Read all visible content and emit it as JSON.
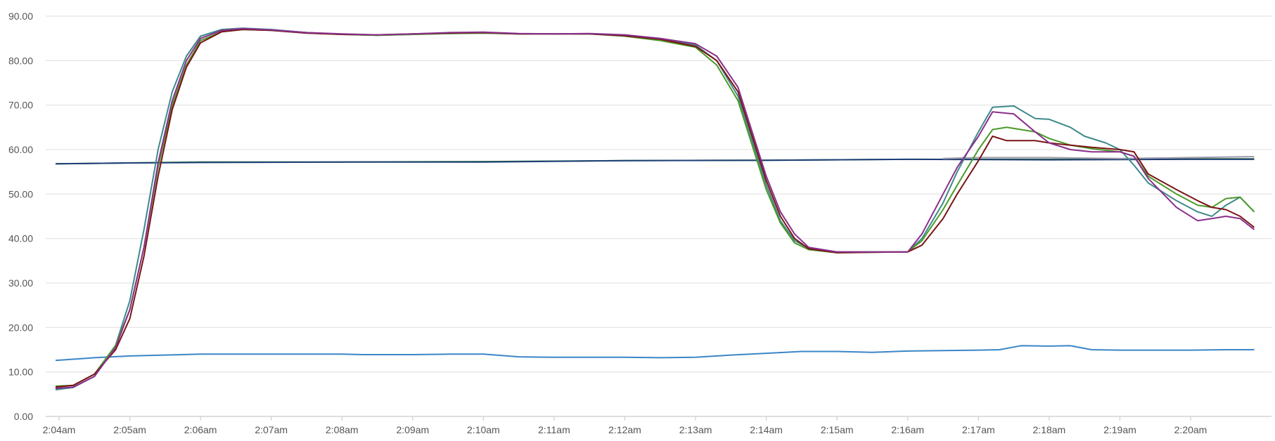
{
  "chart_data": {
    "type": "line",
    "title": "",
    "xlabel": "",
    "ylabel": "",
    "ylim": [
      0,
      90
    ],
    "grid": true,
    "legend": "none",
    "y_ticks": [
      "0.00",
      "10.00",
      "20.00",
      "30.00",
      "40.00",
      "50.00",
      "60.00",
      "70.00",
      "80.00",
      "90.00"
    ],
    "x_ticks": [
      {
        "label": "2:04am",
        "t": 0
      },
      {
        "label": "2:05am",
        "t": 1
      },
      {
        "label": "2:06am",
        "t": 2
      },
      {
        "label": "2:07am",
        "t": 3
      },
      {
        "label": "2:08am",
        "t": 4
      },
      {
        "label": "2:09am",
        "t": 5
      },
      {
        "label": "2:10am",
        "t": 6
      },
      {
        "label": "2:11am",
        "t": 7
      },
      {
        "label": "2:12am",
        "t": 8
      },
      {
        "label": "2:13am",
        "t": 9
      },
      {
        "label": "2:14am",
        "t": 10
      },
      {
        "label": "2:15am",
        "t": 11
      },
      {
        "label": "2:16am",
        "t": 12
      },
      {
        "label": "2:17am",
        "t": 13
      },
      {
        "label": "2:18am",
        "t": 14
      },
      {
        "label": "2:19am",
        "t": 15
      },
      {
        "label": "2:20am",
        "t": 16
      }
    ],
    "xlim": [
      -0.05,
      16.9
    ],
    "series": [
      {
        "color": "#2e7d32",
        "values": [
          [
            -0.05,
            56.8
          ],
          [
            1,
            57.0
          ],
          [
            2,
            57.2
          ],
          [
            4,
            57.2
          ],
          [
            6,
            57.3
          ],
          [
            8,
            57.5
          ],
          [
            10,
            57.6
          ],
          [
            12,
            57.8
          ],
          [
            14,
            57.8
          ],
          [
            16,
            57.9
          ],
          [
            16.9,
            57.9
          ]
        ]
      },
      {
        "color": "#1f3f7a",
        "values": [
          [
            -0.05,
            56.8
          ],
          [
            1,
            57.0
          ],
          [
            2,
            57.1
          ],
          [
            4,
            57.2
          ],
          [
            6,
            57.2
          ],
          [
            8,
            57.5
          ],
          [
            10,
            57.6
          ],
          [
            12,
            57.8
          ],
          [
            14,
            57.7
          ],
          [
            16,
            57.8
          ],
          [
            16.9,
            57.8
          ]
        ]
      },
      {
        "color": "#9e9aa8",
        "values": [
          [
            12.5,
            58.0
          ],
          [
            13,
            58.2
          ],
          [
            14,
            58.2
          ],
          [
            15,
            58.0
          ],
          [
            16,
            58.2
          ],
          [
            16.9,
            58.4
          ]
        ]
      },
      {
        "color": "#3a86c8",
        "values": [
          [
            -0.05,
            12.6
          ],
          [
            0.5,
            13.2
          ],
          [
            1,
            13.6
          ],
          [
            1.5,
            13.8
          ],
          [
            2,
            14.0
          ],
          [
            3,
            14.0
          ],
          [
            4,
            14.0
          ],
          [
            4.3,
            13.9
          ],
          [
            5,
            13.9
          ],
          [
            5.5,
            14.0
          ],
          [
            6,
            14.0
          ],
          [
            6.5,
            13.4
          ],
          [
            7,
            13.3
          ],
          [
            8,
            13.3
          ],
          [
            8.5,
            13.2
          ],
          [
            9,
            13.3
          ],
          [
            9.5,
            13.8
          ],
          [
            10,
            14.2
          ],
          [
            10.5,
            14.6
          ],
          [
            11,
            14.6
          ],
          [
            11.5,
            14.4
          ],
          [
            12,
            14.7
          ],
          [
            12.5,
            14.8
          ],
          [
            13,
            14.9
          ],
          [
            13.3,
            15.0
          ],
          [
            13.6,
            15.9
          ],
          [
            14,
            15.8
          ],
          [
            14.3,
            15.9
          ],
          [
            14.6,
            15.0
          ],
          [
            15,
            14.9
          ],
          [
            15.5,
            14.9
          ],
          [
            16,
            14.9
          ],
          [
            16.5,
            15.0
          ],
          [
            16.9,
            15.0
          ]
        ]
      },
      {
        "color": "#3d8a8a",
        "values": [
          [
            -0.05,
            6.0
          ],
          [
            0.2,
            6.5
          ],
          [
            0.5,
            9.0
          ],
          [
            0.8,
            16.0
          ],
          [
            1,
            26.0
          ],
          [
            1.2,
            42.0
          ],
          [
            1.4,
            60.0
          ],
          [
            1.6,
            73.0
          ],
          [
            1.8,
            81.0
          ],
          [
            2.0,
            85.5
          ],
          [
            2.3,
            87.0
          ],
          [
            2.6,
            87.3
          ],
          [
            3,
            87.0
          ],
          [
            3.5,
            86.3
          ],
          [
            4,
            85.9
          ],
          [
            4.5,
            85.7
          ],
          [
            5,
            85.9
          ],
          [
            5.5,
            86.1
          ],
          [
            6,
            86.2
          ],
          [
            6.5,
            86.0
          ],
          [
            7,
            86.0
          ],
          [
            7.5,
            86.0
          ],
          [
            8,
            85.7
          ],
          [
            8.5,
            85.0
          ],
          [
            9,
            83.5
          ],
          [
            9.3,
            80.0
          ],
          [
            9.6,
            72.0
          ],
          [
            9.8,
            62.0
          ],
          [
            10,
            52.0
          ],
          [
            10.2,
            44.0
          ],
          [
            10.4,
            39.5
          ],
          [
            10.6,
            37.8
          ],
          [
            11,
            37.0
          ],
          [
            11.5,
            37.0
          ],
          [
            12,
            37.0
          ],
          [
            12.2,
            40.0
          ],
          [
            12.5,
            48.0
          ],
          [
            12.7,
            55.0
          ],
          [
            13,
            64.0
          ],
          [
            13.2,
            69.5
          ],
          [
            13.5,
            69.8
          ],
          [
            13.8,
            67.0
          ],
          [
            14,
            66.8
          ],
          [
            14.3,
            65.0
          ],
          [
            14.5,
            63.0
          ],
          [
            14.8,
            61.5
          ],
          [
            15,
            60.0
          ],
          [
            15.2,
            56.5
          ],
          [
            15.4,
            52.5
          ],
          [
            15.8,
            48.5
          ],
          [
            16.1,
            46.0
          ],
          [
            16.3,
            45.0
          ],
          [
            16.5,
            47.5
          ],
          [
            16.7,
            49.3
          ],
          [
            16.9,
            46.0
          ]
        ]
      },
      {
        "color": "#4a9a2a",
        "values": [
          [
            -0.05,
            6.8
          ],
          [
            0.2,
            7.0
          ],
          [
            0.5,
            9.5
          ],
          [
            0.8,
            16.0
          ],
          [
            1,
            24.0
          ],
          [
            1.2,
            38.0
          ],
          [
            1.4,
            56.0
          ],
          [
            1.6,
            70.0
          ],
          [
            1.8,
            79.0
          ],
          [
            2.0,
            84.5
          ],
          [
            2.3,
            86.5
          ],
          [
            2.6,
            87.0
          ],
          [
            3,
            86.8
          ],
          [
            3.5,
            86.2
          ],
          [
            4,
            85.9
          ],
          [
            4.5,
            85.7
          ],
          [
            5,
            85.9
          ],
          [
            5.5,
            86.1
          ],
          [
            6,
            86.2
          ],
          [
            6.5,
            86.0
          ],
          [
            7,
            86.0
          ],
          [
            7.5,
            86.0
          ],
          [
            8,
            85.5
          ],
          [
            8.5,
            84.5
          ],
          [
            9,
            83.0
          ],
          [
            9.3,
            79.0
          ],
          [
            9.6,
            71.0
          ],
          [
            9.8,
            61.0
          ],
          [
            10,
            51.0
          ],
          [
            10.2,
            43.5
          ],
          [
            10.4,
            39.0
          ],
          [
            10.6,
            37.5
          ],
          [
            11,
            36.8
          ],
          [
            11.5,
            36.9
          ],
          [
            12,
            37.0
          ],
          [
            12.2,
            39.5
          ],
          [
            12.5,
            46.5
          ],
          [
            12.7,
            52.0
          ],
          [
            13,
            60.0
          ],
          [
            13.2,
            64.5
          ],
          [
            13.4,
            65.0
          ],
          [
            13.8,
            64.0
          ],
          [
            14,
            62.5
          ],
          [
            14.3,
            61.0
          ],
          [
            14.6,
            60.2
          ],
          [
            15,
            59.5
          ],
          [
            15.2,
            58.5
          ],
          [
            15.4,
            54.0
          ],
          [
            15.8,
            50.0
          ],
          [
            16.1,
            47.5
          ],
          [
            16.3,
            47.0
          ],
          [
            16.5,
            49.0
          ],
          [
            16.7,
            49.3
          ],
          [
            16.9,
            46.0
          ]
        ]
      },
      {
        "color": "#7a1414",
        "values": [
          [
            -0.05,
            6.6
          ],
          [
            0.2,
            7.0
          ],
          [
            0.5,
            9.5
          ],
          [
            0.8,
            15.0
          ],
          [
            1,
            22.0
          ],
          [
            1.2,
            36.0
          ],
          [
            1.4,
            54.0
          ],
          [
            1.6,
            69.0
          ],
          [
            1.8,
            78.5
          ],
          [
            2.0,
            84.0
          ],
          [
            2.3,
            86.5
          ],
          [
            2.6,
            87.0
          ],
          [
            3,
            86.8
          ],
          [
            3.5,
            86.2
          ],
          [
            4,
            85.9
          ],
          [
            4.5,
            85.8
          ],
          [
            5,
            86.0
          ],
          [
            5.5,
            86.2
          ],
          [
            6,
            86.3
          ],
          [
            6.5,
            86.0
          ],
          [
            7,
            86.0
          ],
          [
            7.5,
            86.0
          ],
          [
            8,
            85.6
          ],
          [
            8.5,
            84.8
          ],
          [
            9,
            83.2
          ],
          [
            9.3,
            80.0
          ],
          [
            9.6,
            73.0
          ],
          [
            9.8,
            63.0
          ],
          [
            10,
            53.0
          ],
          [
            10.2,
            45.0
          ],
          [
            10.4,
            40.0
          ],
          [
            10.6,
            37.7
          ],
          [
            11,
            36.8
          ],
          [
            11.5,
            36.9
          ],
          [
            12,
            37.0
          ],
          [
            12.2,
            38.5
          ],
          [
            12.5,
            44.5
          ],
          [
            12.7,
            50.0
          ],
          [
            13,
            57.5
          ],
          [
            13.2,
            63.0
          ],
          [
            13.4,
            62.0
          ],
          [
            13.8,
            62.0
          ],
          [
            14,
            61.5
          ],
          [
            14.3,
            61.0
          ],
          [
            14.6,
            60.5
          ],
          [
            15,
            60.0
          ],
          [
            15.2,
            59.5
          ],
          [
            15.4,
            54.5
          ],
          [
            15.8,
            51.0
          ],
          [
            16.1,
            48.5
          ],
          [
            16.3,
            47.0
          ],
          [
            16.5,
            46.5
          ],
          [
            16.7,
            45.0
          ],
          [
            16.9,
            42.5
          ]
        ]
      },
      {
        "color": "#8a2f8c",
        "values": [
          [
            -0.05,
            6.3
          ],
          [
            0.2,
            6.6
          ],
          [
            0.5,
            9.0
          ],
          [
            0.8,
            15.5
          ],
          [
            1,
            24.0
          ],
          [
            1.2,
            38.0
          ],
          [
            1.4,
            57.0
          ],
          [
            1.6,
            71.0
          ],
          [
            1.8,
            80.0
          ],
          [
            2.0,
            85.0
          ],
          [
            2.3,
            86.8
          ],
          [
            2.6,
            87.2
          ],
          [
            3,
            86.9
          ],
          [
            3.5,
            86.3
          ],
          [
            4,
            86.0
          ],
          [
            4.5,
            85.8
          ],
          [
            5,
            86.0
          ],
          [
            5.5,
            86.3
          ],
          [
            6,
            86.4
          ],
          [
            6.5,
            86.1
          ],
          [
            7,
            86.0
          ],
          [
            7.5,
            86.1
          ],
          [
            8,
            85.8
          ],
          [
            8.5,
            85.0
          ],
          [
            9,
            83.8
          ],
          [
            9.3,
            81.0
          ],
          [
            9.6,
            74.0
          ],
          [
            9.8,
            64.0
          ],
          [
            10,
            54.0
          ],
          [
            10.2,
            46.0
          ],
          [
            10.4,
            41.0
          ],
          [
            10.6,
            38.0
          ],
          [
            11,
            37.0
          ],
          [
            11.5,
            37.0
          ],
          [
            12,
            37.0
          ],
          [
            12.2,
            41.0
          ],
          [
            12.5,
            50.0
          ],
          [
            12.7,
            56.0
          ],
          [
            13,
            63.0
          ],
          [
            13.2,
            68.5
          ],
          [
            13.5,
            68.0
          ],
          [
            13.8,
            64.0
          ],
          [
            14,
            61.5
          ],
          [
            14.3,
            60.0
          ],
          [
            14.6,
            59.5
          ],
          [
            15,
            59.5
          ],
          [
            15.2,
            58.5
          ],
          [
            15.4,
            53.5
          ],
          [
            15.8,
            47.0
          ],
          [
            16.1,
            44.0
          ],
          [
            16.3,
            44.5
          ],
          [
            16.5,
            45.0
          ],
          [
            16.7,
            44.5
          ],
          [
            16.9,
            42.0
          ]
        ]
      }
    ]
  }
}
